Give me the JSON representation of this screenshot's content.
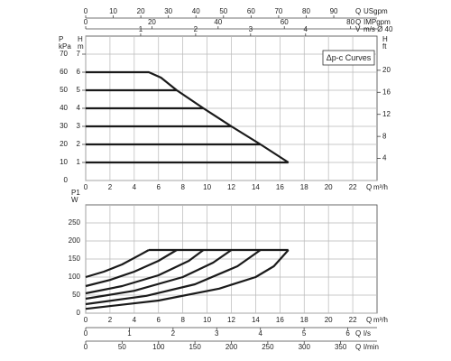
{
  "chart_data": [
    {
      "type": "line",
      "annotation": "Δp-c Curves",
      "color": "#1a1a1a",
      "grid": true,
      "xlabel": {
        "name": "Q",
        "unit": "m³/h"
      },
      "xlim": [
        0,
        24
      ],
      "xticks": [
        0,
        2,
        4,
        6,
        8,
        10,
        12,
        14,
        16,
        18,
        20,
        22
      ],
      "ylabel": {
        "name": "P",
        "unit": "kPa"
      },
      "ylim": [
        0,
        80
      ],
      "yticks": [
        0,
        10,
        20,
        30,
        40,
        50,
        60,
        70
      ],
      "extra_axes": [
        {
          "side": "left",
          "name": "H",
          "unit": "m",
          "lim": [
            0,
            8
          ],
          "ticks": [
            1,
            2,
            3,
            4,
            5,
            6,
            7
          ]
        },
        {
          "side": "right",
          "name": "H",
          "unit": "ft",
          "lim": [
            0,
            26.2
          ],
          "ticks": [
            4,
            8,
            12,
            16,
            20
          ]
        },
        {
          "side": "top",
          "name": "Q",
          "unit": "USgpm",
          "lim": [
            0,
            105.7
          ],
          "ticks": [
            0,
            10,
            20,
            30,
            40,
            50,
            60,
            70,
            80,
            90
          ]
        },
        {
          "side": "top",
          "name": "Q",
          "unit": "IMPgpm",
          "lim": [
            0,
            88
          ],
          "ticks": [
            0,
            20,
            40,
            60,
            80
          ]
        },
        {
          "side": "top",
          "name": "V",
          "unit": "m/s Ø 40",
          "lim": [
            0,
            5.3
          ],
          "ticks": [
            1,
            2,
            3,
            4
          ]
        }
      ],
      "series": [
        {
          "x": [
            0,
            16.7
          ],
          "values": [
            10,
            10
          ]
        },
        {
          "x": [
            0,
            14.4
          ],
          "values": [
            20,
            20
          ]
        },
        {
          "x": [
            0,
            12
          ],
          "values": [
            30,
            30
          ]
        },
        {
          "x": [
            0,
            9.7
          ],
          "values": [
            40,
            40
          ]
        },
        {
          "x": [
            0,
            7.5
          ],
          "values": [
            50,
            50
          ]
        },
        {
          "x": [
            0,
            5.2,
            6.2,
            7.5,
            9.7,
            12,
            14.4,
            16.7
          ],
          "values": [
            60,
            60,
            57,
            50,
            40,
            30,
            20,
            10
          ]
        }
      ]
    },
    {
      "type": "line",
      "color": "#1a1a1a",
      "grid": true,
      "xlabel": {
        "name": "Q",
        "unit": "m³/h"
      },
      "xlim": [
        0,
        24
      ],
      "xticks": [
        0,
        2,
        4,
        6,
        8,
        10,
        12,
        14,
        16,
        18,
        20,
        22
      ],
      "ylabel": {
        "name": "P1",
        "unit": "W"
      },
      "ylim": [
        0,
        300
      ],
      "yticks": [
        0,
        50,
        100,
        150,
        200,
        250
      ],
      "extra_axes": [
        {
          "side": "bottom",
          "name": "Q",
          "unit": "l/s",
          "lim": [
            0,
            6.67
          ],
          "ticks": [
            0,
            1,
            2,
            3,
            4,
            5,
            6
          ]
        },
        {
          "side": "bottom",
          "name": "Q",
          "unit": "l/min",
          "lim": [
            0,
            400
          ],
          "ticks": [
            0,
            50,
            100,
            150,
            200,
            250,
            300,
            350
          ]
        }
      ],
      "series": [
        {
          "x": [
            0,
            1.5,
            3,
            4.5,
            5.2
          ],
          "values": [
            100,
            115,
            135,
            162,
            175
          ]
        },
        {
          "x": [
            0,
            2,
            4,
            6,
            7.5
          ],
          "values": [
            75,
            92,
            115,
            145,
            175
          ]
        },
        {
          "x": [
            0,
            3,
            6,
            8.5,
            9.7
          ],
          "values": [
            55,
            75,
            105,
            145,
            175
          ]
        },
        {
          "x": [
            0,
            4,
            8,
            10.5,
            12
          ],
          "values": [
            40,
            62,
            100,
            140,
            175
          ]
        },
        {
          "x": [
            0,
            5,
            9,
            12.5,
            14.4
          ],
          "values": [
            25,
            48,
            80,
            130,
            175
          ]
        },
        {
          "x": [
            0,
            6,
            11,
            14,
            15.5,
            16.7
          ],
          "values": [
            12,
            35,
            68,
            100,
            130,
            175
          ]
        },
        {
          "x": [
            5.2,
            16.7
          ],
          "values": [
            175,
            175
          ]
        }
      ]
    }
  ]
}
